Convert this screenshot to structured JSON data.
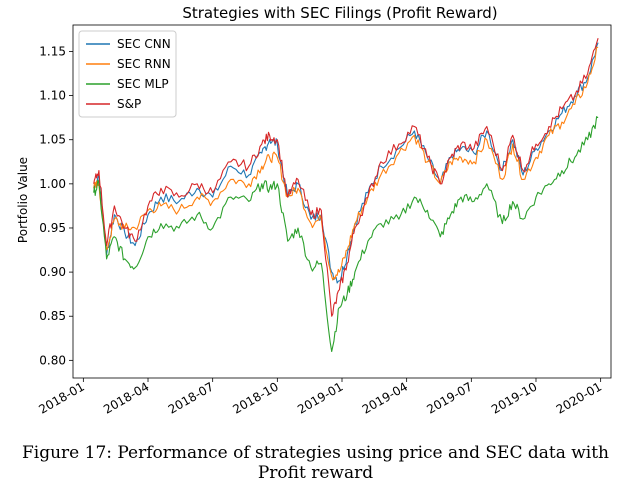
{
  "figure": {
    "caption": "Figure 17: Performance of strategies using price and SEC data with Profit reward"
  },
  "chart_data": {
    "type": "line",
    "title": "Strategies with SEC Filings (Profit Reward)",
    "xlabel": "",
    "ylabel": "Portfolio Value",
    "xlim": [
      "2018-01",
      "2020-01"
    ],
    "ylim": [
      0.78,
      1.18
    ],
    "legend_position": "top-left",
    "x_ticks": [
      "2018-01",
      "2018-04",
      "2018-07",
      "2018-10",
      "2019-01",
      "2019-04",
      "2019-07",
      "2019-10",
      "2020-01"
    ],
    "y_ticks": [
      "0.80",
      "0.85",
      "0.90",
      "0.95",
      "1.00",
      "1.05",
      "1.10",
      "1.15"
    ],
    "x": [
      2018.04,
      2018.06,
      2018.09,
      2018.12,
      2018.16,
      2018.2,
      2018.25,
      2018.3,
      2018.37,
      2018.44,
      2018.5,
      2018.57,
      2018.64,
      2018.69,
      2018.72,
      2018.75,
      2018.79,
      2018.83,
      2018.88,
      2018.92,
      2018.96,
      2018.99,
      2019.02,
      2019.05,
      2019.1,
      2019.15,
      2019.22,
      2019.28,
      2019.33,
      2019.38,
      2019.42,
      2019.46,
      2019.51,
      2019.56,
      2019.62,
      2019.66,
      2019.7,
      2019.75,
      2019.8,
      2019.85,
      2019.9,
      2019.95,
      2019.99
    ],
    "series": [
      {
        "name": "SEC CNN",
        "color": "#1f77b4",
        "values": [
          0.995,
          1.01,
          0.92,
          0.965,
          0.945,
          0.93,
          0.965,
          0.985,
          0.98,
          0.995,
          0.985,
          1.02,
          1.01,
          1.035,
          1.05,
          1.045,
          0.985,
          1.0,
          0.96,
          0.965,
          0.9,
          0.89,
          0.92,
          0.955,
          0.99,
          1.02,
          1.04,
          1.06,
          1.03,
          1.0,
          1.03,
          1.04,
          1.035,
          1.06,
          1.015,
          1.05,
          1.01,
          1.04,
          1.06,
          1.08,
          1.1,
          1.12,
          1.16
        ]
      },
      {
        "name": "SEC RNN",
        "color": "#ff7f0e",
        "values": [
          0.995,
          1.0,
          0.925,
          0.96,
          0.95,
          0.95,
          0.97,
          0.975,
          0.97,
          0.985,
          0.98,
          1.005,
          1.0,
          1.02,
          1.03,
          1.03,
          0.985,
          0.995,
          0.955,
          0.96,
          0.895,
          0.9,
          0.925,
          0.955,
          0.985,
          1.01,
          1.035,
          1.055,
          1.025,
          1.0,
          1.025,
          1.03,
          1.025,
          1.05,
          1.005,
          1.045,
          1.005,
          1.03,
          1.055,
          1.07,
          1.09,
          1.115,
          1.155
        ]
      },
      {
        "name": "SEC MLP",
        "color": "#2ca02c",
        "values": [
          0.99,
          1.0,
          0.915,
          0.94,
          0.915,
          0.905,
          0.94,
          0.955,
          0.95,
          0.965,
          0.95,
          0.985,
          0.98,
          1.0,
          0.995,
          1.0,
          0.935,
          0.95,
          0.905,
          0.91,
          0.81,
          0.86,
          0.875,
          0.9,
          0.935,
          0.955,
          0.96,
          0.985,
          0.97,
          0.94,
          0.965,
          0.985,
          0.98,
          1.0,
          0.955,
          0.98,
          0.96,
          0.985,
          1.0,
          1.015,
          1.03,
          1.05,
          1.075
        ]
      },
      {
        "name": "S&P",
        "color": "#d62728",
        "values": [
          1.0,
          1.015,
          0.93,
          0.975,
          0.95,
          0.935,
          0.975,
          0.995,
          0.985,
          1.0,
          0.99,
          1.025,
          1.02,
          1.045,
          1.055,
          1.05,
          0.985,
          1.005,
          0.965,
          0.97,
          0.85,
          0.88,
          0.91,
          0.95,
          0.985,
          1.025,
          1.045,
          1.065,
          1.03,
          1.0,
          1.03,
          1.045,
          1.04,
          1.065,
          1.015,
          1.055,
          1.015,
          1.045,
          1.065,
          1.085,
          1.1,
          1.125,
          1.165
        ]
      }
    ]
  }
}
